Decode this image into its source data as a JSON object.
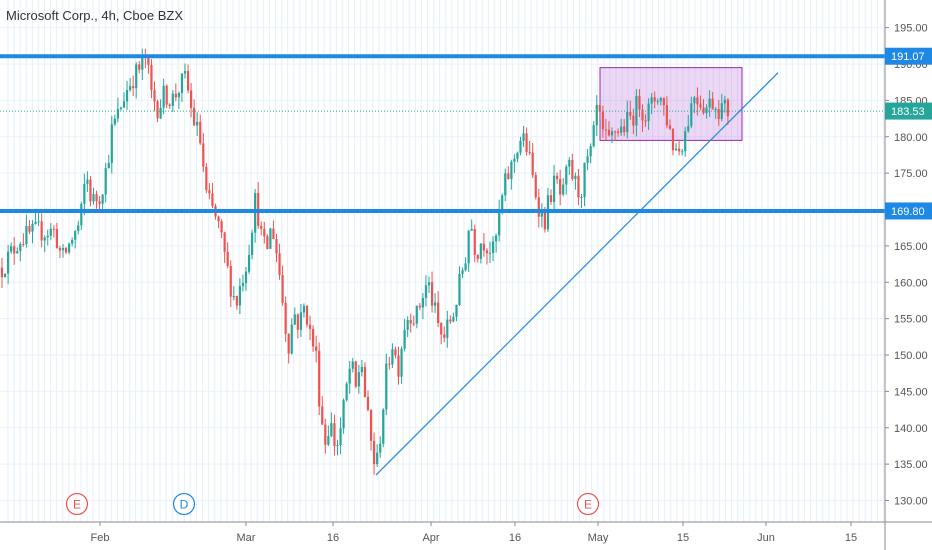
{
  "header": {
    "title": "Microsoft Corp., 4h, Cboe BZX"
  },
  "chart_data": {
    "type": "candlestick",
    "ylim": [
      125,
      197.5
    ],
    "y_ticks": [
      130,
      135,
      140,
      145,
      150,
      155,
      160,
      165,
      170,
      175,
      180,
      185,
      190,
      195
    ],
    "x_ticks": [
      {
        "label": "Feb",
        "x": 100
      },
      {
        "label": "Mar",
        "x": 246
      },
      {
        "label": "16",
        "x": 333
      },
      {
        "label": "Apr",
        "x": 431
      },
      {
        "label": "16",
        "x": 515
      },
      {
        "label": "May",
        "x": 598
      },
      {
        "label": "15",
        "x": 683
      },
      {
        "label": "Jun",
        "x": 766
      },
      {
        "label": "15",
        "x": 851
      }
    ],
    "price_labels": [
      {
        "text": "191.07",
        "value": 191.07,
        "color": "#1e88e5"
      },
      {
        "text": "183.53",
        "value": 183.53,
        "color": "#26a69a"
      },
      {
        "text": "169.80",
        "value": 169.8,
        "color": "#1e88e5"
      }
    ],
    "levels": [
      {
        "name": "resistance",
        "value": 191.07,
        "color": "#1e88e5"
      },
      {
        "name": "support",
        "value": 169.8,
        "color": "#1e88e5"
      }
    ],
    "current_price": 183.53,
    "trendline": [
      {
        "x": 376,
        "y": 133.5
      },
      {
        "x": 778,
        "y": 188.8
      }
    ],
    "box": {
      "x0": 600,
      "x1": 742,
      "y_top": 189.5,
      "y_bottom": 179.5
    },
    "earnings_markers": [
      {
        "label": "E",
        "x": 77
      },
      {
        "label": "D",
        "x": 184
      },
      {
        "label": "E",
        "x": 588
      }
    ],
    "path": [
      [
        2,
        162
      ],
      [
        20,
        166
      ],
      [
        38,
        167
      ],
      [
        55,
        167
      ],
      [
        62,
        163
      ],
      [
        72,
        166
      ],
      [
        80,
        168
      ],
      [
        86,
        175
      ],
      [
        92,
        171
      ],
      [
        100,
        172
      ],
      [
        107,
        176
      ],
      [
        112,
        181
      ],
      [
        118,
        183
      ],
      [
        125,
        186
      ],
      [
        132,
        188
      ],
      [
        138,
        189
      ],
      [
        146,
        191
      ],
      [
        151,
        186
      ],
      [
        158,
        184
      ],
      [
        165,
        186
      ],
      [
        172,
        185
      ],
      [
        180,
        187
      ],
      [
        186,
        188
      ],
      [
        192,
        183
      ],
      [
        197,
        181
      ],
      [
        201,
        179
      ],
      [
        206,
        172
      ],
      [
        212,
        170
      ],
      [
        218,
        168
      ],
      [
        224,
        164
      ],
      [
        230,
        160
      ],
      [
        236,
        157
      ],
      [
        241,
        160
      ],
      [
        247,
        163
      ],
      [
        252,
        168
      ],
      [
        256,
        172
      ],
      [
        260,
        167
      ],
      [
        266,
        164
      ],
      [
        272,
        168
      ],
      [
        278,
        163
      ],
      [
        283,
        157
      ],
      [
        288,
        151
      ],
      [
        294,
        156
      ],
      [
        299,
        154
      ],
      [
        305,
        157
      ],
      [
        310,
        153
      ],
      [
        316,
        150
      ],
      [
        320,
        143
      ],
      [
        325,
        138
      ],
      [
        330,
        141
      ],
      [
        336,
        137
      ],
      [
        341,
        140
      ],
      [
        346,
        145
      ],
      [
        351,
        149
      ],
      [
        356,
        145
      ],
      [
        361,
        150
      ],
      [
        366,
        143
      ],
      [
        371,
        138
      ],
      [
        376,
        134
      ],
      [
        381,
        140
      ],
      [
        386,
        147
      ],
      [
        392,
        152
      ],
      [
        398,
        148
      ],
      [
        404,
        154
      ],
      [
        410,
        156
      ],
      [
        416,
        155
      ],
      [
        422,
        158
      ],
      [
        428,
        160
      ],
      [
        433,
        157
      ],
      [
        438,
        154
      ],
      [
        443,
        152
      ],
      [
        448,
        154
      ],
      [
        454,
        156
      ],
      [
        460,
        160
      ],
      [
        466,
        164
      ],
      [
        470,
        169
      ],
      [
        476,
        164
      ],
      [
        482,
        166
      ],
      [
        488,
        165
      ],
      [
        494,
        164
      ],
      [
        500,
        170
      ],
      [
        506,
        174
      ],
      [
        512,
        176
      ],
      [
        518,
        179
      ],
      [
        522,
        180
      ],
      [
        528,
        178
      ],
      [
        533,
        174
      ],
      [
        538,
        171
      ],
      [
        544,
        168
      ],
      [
        550,
        172
      ],
      [
        556,
        174
      ],
      [
        562,
        171
      ],
      [
        568,
        176
      ],
      [
        574,
        174
      ],
      [
        580,
        172
      ],
      [
        586,
        176
      ],
      [
        592,
        178
      ],
      [
        597,
        184
      ],
      [
        603,
        180
      ],
      [
        609,
        179
      ],
      [
        615,
        181
      ],
      [
        621,
        181
      ],
      [
        627,
        182
      ],
      [
        633,
        183
      ],
      [
        639,
        185
      ],
      [
        645,
        183
      ],
      [
        651,
        184
      ],
      [
        657,
        186
      ],
      [
        662,
        185
      ],
      [
        668,
        182
      ],
      [
        673,
        179
      ],
      [
        678,
        178
      ],
      [
        684,
        180
      ],
      [
        689,
        183
      ],
      [
        694,
        186
      ],
      [
        700,
        185
      ],
      [
        706,
        184
      ],
      [
        712,
        185
      ],
      [
        718,
        184
      ],
      [
        724,
        184
      ],
      [
        728,
        183.5
      ]
    ]
  }
}
